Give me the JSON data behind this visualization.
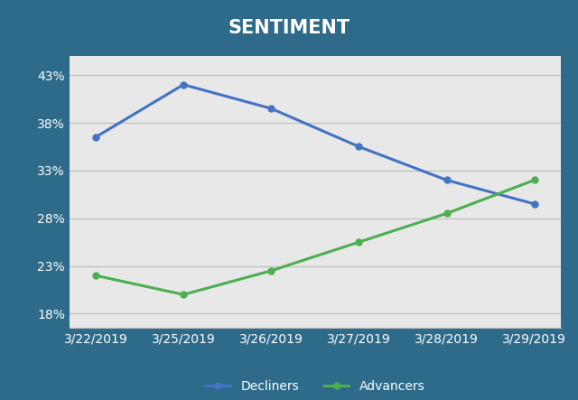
{
  "title": "SENTIMENT",
  "x_labels": [
    "3/22/2019",
    "3/25/2019",
    "3/26/2019",
    "3/27/2019",
    "3/28/2019",
    "3/29/2019"
  ],
  "decliners": [
    0.365,
    0.42,
    0.395,
    0.355,
    0.32,
    0.295
  ],
  "advancers": [
    0.22,
    0.2,
    0.225,
    0.255,
    0.285,
    0.32
  ],
  "decliners_color": "#4472C4",
  "advancers_color": "#4CAF50",
  "background_outer": "#2E6B8A",
  "background_inner": "#E8E8E8",
  "title_color": "#FFFFFF",
  "tick_color": "#FFFFFF",
  "grid_color": "#BBBBBB",
  "yticks": [
    0.18,
    0.23,
    0.28,
    0.33,
    0.38,
    0.43
  ],
  "ylim": [
    0.165,
    0.45
  ],
  "legend_decliners": "Decliners",
  "legend_advancers": "Advancers",
  "line_width": 2.2,
  "marker_size": 5,
  "title_fontsize": 15,
  "tick_fontsize": 10,
  "legend_fontsize": 10
}
